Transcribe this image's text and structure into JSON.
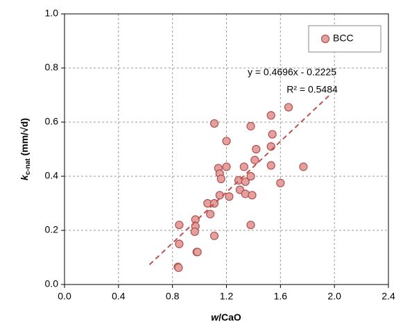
{
  "chart_data": {
    "type": "scatter",
    "xlabel": [
      "w",
      "/CaO"
    ],
    "ylabel": [
      "k",
      "c-nat",
      " (mm/√d)"
    ],
    "series": [
      {
        "name": "BCC",
        "color": "#e3a09e",
        "edge_color": "#b0504d",
        "x": [
          0.84,
          0.845,
          0.85,
          0.85,
          0.97,
          0.97,
          0.965,
          0.98,
          0.985,
          1.06,
          1.08,
          1.11,
          1.11,
          1.11,
          1.14,
          1.15,
          1.16,
          1.15,
          1.2,
          1.2,
          1.22,
          1.29,
          1.3,
          1.33,
          1.34,
          1.34,
          1.38,
          1.38,
          1.38,
          1.39,
          1.41,
          1.42,
          1.53,
          1.53,
          1.53,
          1.54,
          1.6,
          1.66,
          1.77
        ],
        "values": [
          0.065,
          0.062,
          0.15,
          0.22,
          0.24,
          0.215,
          0.195,
          0.12,
          0.12,
          0.3,
          0.26,
          0.3,
          0.18,
          0.595,
          0.43,
          0.41,
          0.39,
          0.33,
          0.53,
          0.435,
          0.325,
          0.385,
          0.35,
          0.435,
          0.38,
          0.335,
          0.585,
          0.4,
          0.22,
          0.33,
          0.46,
          0.5,
          0.625,
          0.51,
          0.44,
          0.555,
          0.375,
          0.655,
          0.435
        ]
      }
    ],
    "trendline": {
      "color": "#c0504d",
      "x": [
        0.63,
        1.97
      ],
      "values": [
        0.0734,
        0.7026
      ]
    },
    "annotations": [
      "y = 0.4696x - 0.2225",
      "R² = 0.5484"
    ],
    "xlim": [
      0,
      2.4
    ],
    "ylim": [
      0,
      1
    ],
    "xticks": [
      {
        "value": 0,
        "label": "0.0"
      },
      {
        "value": 0.4,
        "label": "0.4"
      },
      {
        "value": 0.8,
        "label": "0.8"
      },
      {
        "value": 1.2,
        "label": "1.2"
      },
      {
        "value": 1.6,
        "label": "1.6"
      },
      {
        "value": 2,
        "label": "2.0"
      },
      {
        "value": 2.4,
        "label": "2.4"
      }
    ],
    "yticks": [
      {
        "value": 0,
        "label": "0.0"
      },
      {
        "value": 0.2,
        "label": "0.2"
      },
      {
        "value": 0.4,
        "label": "0.4"
      },
      {
        "value": 0.6,
        "label": "0.6"
      },
      {
        "value": 0.8,
        "label": "0.8"
      },
      {
        "value": 1,
        "label": "1.0"
      }
    ],
    "grid": true,
    "legend": "upper right"
  }
}
